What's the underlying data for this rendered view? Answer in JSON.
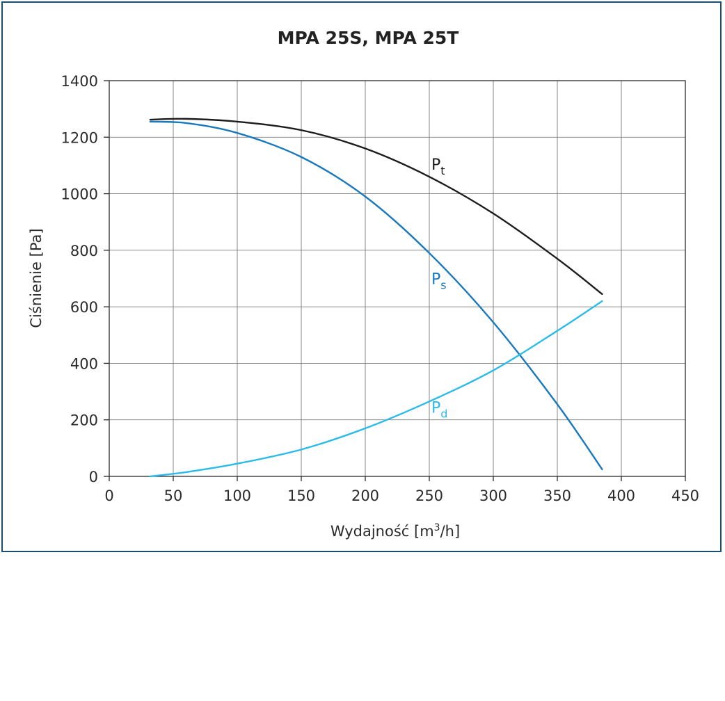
{
  "chart_data": {
    "type": "line",
    "title": "MPA 25S, MPA 25T",
    "xlabel_prefix": "Wydajność [m",
    "xlabel_sup": "3",
    "xlabel_suffix": "/h]",
    "ylabel": "Ciśnienie [Pa]",
    "xlim": [
      0,
      450
    ],
    "ylim": [
      0,
      1400
    ],
    "xticks": [
      "0",
      "50",
      "100",
      "150",
      "200",
      "250",
      "300",
      "350",
      "400",
      "450"
    ],
    "yticks": [
      "0",
      "200",
      "400",
      "600",
      "800",
      "1000",
      "1200",
      "1400"
    ],
    "grid": true,
    "series": [
      {
        "name_main": "P",
        "name_sub": "t",
        "color": "#1c1c1c",
        "label_at": [
          250,
          1085
        ],
        "x": [
          32,
          60,
          100,
          150,
          200,
          250,
          300,
          350,
          385
        ],
        "y": [
          1262,
          1265,
          1255,
          1225,
          1160,
          1060,
          930,
          770,
          645
        ]
      },
      {
        "name_main": "P",
        "name_sub": "s",
        "color": "#1a78bd",
        "label_at": [
          250,
          680
        ],
        "x": [
          32,
          60,
          100,
          150,
          200,
          250,
          300,
          350,
          385
        ],
        "y": [
          1255,
          1250,
          1215,
          1130,
          990,
          790,
          545,
          255,
          25
        ]
      },
      {
        "name_main": "P",
        "name_sub": "d",
        "color": "#2bbbe8",
        "label_at": [
          250,
          225
        ],
        "x": [
          32,
          60,
          100,
          150,
          200,
          250,
          300,
          350,
          385
        ],
        "y": [
          0,
          15,
          45,
          95,
          170,
          265,
          375,
          515,
          620
        ]
      }
    ]
  }
}
